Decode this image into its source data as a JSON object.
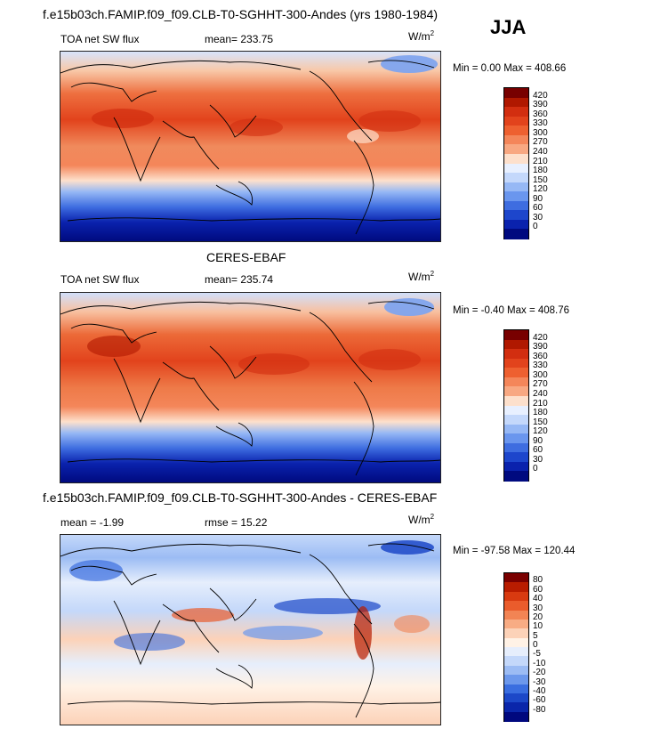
{
  "figure": {
    "season": "JJA"
  },
  "panels": [
    {
      "id": "model",
      "title": "f.e15b03ch.FAMIP.f09_f09.CLB-T0-SGHHT-300-Andes (yrs 1980-1984)",
      "variable": "TOA net SW flux",
      "stat1": "mean=  233.75",
      "stat2": "",
      "units": "W/m",
      "units_exp": "2",
      "minmax": "Min =   0.00  Max = 408.66",
      "colorbar": {
        "labels": [
          "420",
          "390",
          "360",
          "330",
          "300",
          "270",
          "240",
          "210",
          "180",
          "150",
          "120",
          "90",
          "60",
          "30",
          "0"
        ],
        "colors": [
          "#780000",
          "#b01800",
          "#d22e10",
          "#e2431c",
          "#ee6030",
          "#f4865a",
          "#f8a882",
          "#fde0cc",
          "#e8f0ff",
          "#c4d8fb",
          "#96b8f5",
          "#6a96ee",
          "#3e6de0",
          "#1d46cc",
          "#0a22ad",
          "#000a7f"
        ]
      }
    },
    {
      "id": "obs",
      "title": "CERES-EBAF",
      "variable": "TOA net SW flux",
      "stat1": "mean=  235.74",
      "stat2": "",
      "units": "W/m",
      "units_exp": "2",
      "minmax": "Min =  -0.40  Max = 408.76",
      "colorbar": {
        "labels": [
          "420",
          "390",
          "360",
          "330",
          "300",
          "270",
          "240",
          "210",
          "180",
          "150",
          "120",
          "90",
          "60",
          "30",
          "0"
        ],
        "colors": [
          "#780000",
          "#b01800",
          "#d22e10",
          "#e2431c",
          "#ee6030",
          "#f4865a",
          "#f8a882",
          "#fde0cc",
          "#e8f0ff",
          "#c4d8fb",
          "#96b8f5",
          "#6a96ee",
          "#3e6de0",
          "#1d46cc",
          "#0a22ad",
          "#000a7f"
        ]
      }
    },
    {
      "id": "diff",
      "title": "f.e15b03ch.FAMIP.f09_f09.CLB-T0-SGHHT-300-Andes - CERES-EBAF",
      "variable": "mean =   -1.99",
      "stat1": "rmse =   15.22",
      "stat2": "",
      "units": "W/m",
      "units_exp": "2",
      "minmax": "Min = -97.58  Max = 120.44",
      "colorbar": {
        "labels": [
          "80",
          "60",
          "40",
          "30",
          "20",
          "10",
          "5",
          "0",
          "-5",
          "-10",
          "-20",
          "-30",
          "-40",
          "-60",
          "-80"
        ],
        "colors": [
          "#7a0000",
          "#b81c00",
          "#d83a10",
          "#ea5c2c",
          "#f28454",
          "#f8ac84",
          "#fcd2b8",
          "#fff2e6",
          "#e6eefc",
          "#c4d8fa",
          "#9cbcf4",
          "#6c98ec",
          "#3a6ee0",
          "#1c48c8",
          "#0a26aa",
          "#00087e"
        ]
      }
    }
  ],
  "chart_data": [
    {
      "type": "heatmap",
      "title": "f.e15b03ch.FAMIP.f09_f09.CLB-T0-SGHHT-300-Andes (yrs 1980-1984)",
      "subtitle": "TOA net SW flux",
      "season": "JJA",
      "units": "W/m2",
      "mean": 233.75,
      "min": 0.0,
      "max": 408.66,
      "colorbar_levels": [
        0,
        30,
        60,
        90,
        120,
        150,
        180,
        210,
        240,
        270,
        300,
        330,
        360,
        390,
        420
      ],
      "xlim": [
        0,
        360
      ],
      "ylim": [
        -90,
        90
      ],
      "grid": false,
      "zonal_mean_rows": [
        {
          "lat": 90,
          "value": 205
        },
        {
          "lat": 75,
          "value": 220
        },
        {
          "lat": 60,
          "value": 275
        },
        {
          "lat": 45,
          "value": 305
        },
        {
          "lat": 30,
          "value": 340
        },
        {
          "lat": 15,
          "value": 330
        },
        {
          "lat": 0,
          "value": 300
        },
        {
          "lat": -15,
          "value": 290
        },
        {
          "lat": -30,
          "value": 220
        },
        {
          "lat": -45,
          "value": 120
        },
        {
          "lat": -60,
          "value": 50
        },
        {
          "lat": -75,
          "value": 10
        },
        {
          "lat": -90,
          "value": 0
        }
      ]
    },
    {
      "type": "heatmap",
      "title": "CERES-EBAF",
      "subtitle": "TOA net SW flux",
      "units": "W/m2",
      "mean": 235.74,
      "min": -0.4,
      "max": 408.76,
      "colorbar_levels": [
        0,
        30,
        60,
        90,
        120,
        150,
        180,
        210,
        240,
        270,
        300,
        330,
        360,
        390,
        420
      ],
      "xlim": [
        0,
        360
      ],
      "ylim": [
        -90,
        90
      ],
      "grid": false,
      "zonal_mean_rows": [
        {
          "lat": 90,
          "value": 200
        },
        {
          "lat": 75,
          "value": 215
        },
        {
          "lat": 60,
          "value": 270
        },
        {
          "lat": 45,
          "value": 310
        },
        {
          "lat": 30,
          "value": 345
        },
        {
          "lat": 15,
          "value": 335
        },
        {
          "lat": 0,
          "value": 305
        },
        {
          "lat": -15,
          "value": 300
        },
        {
          "lat": -30,
          "value": 225
        },
        {
          "lat": -45,
          "value": 115
        },
        {
          "lat": -60,
          "value": 45
        },
        {
          "lat": -75,
          "value": 5
        },
        {
          "lat": -90,
          "value": 0
        }
      ]
    },
    {
      "type": "heatmap",
      "title": "f.e15b03ch.FAMIP.f09_f09.CLB-T0-SGHHT-300-Andes - CERES-EBAF",
      "units": "W/m2",
      "mean": -1.99,
      "rmse": 15.22,
      "min": -97.58,
      "max": 120.44,
      "colorbar_levels": [
        -80,
        -60,
        -40,
        -30,
        -20,
        -10,
        -5,
        0,
        5,
        10,
        20,
        30,
        40,
        60,
        80
      ],
      "xlim": [
        0,
        360
      ],
      "ylim": [
        -90,
        90
      ],
      "grid": false,
      "zonal_mean_rows": [
        {
          "lat": 90,
          "value": 2
        },
        {
          "lat": 75,
          "value": -20
        },
        {
          "lat": 60,
          "value": -12
        },
        {
          "lat": 45,
          "value": -8
        },
        {
          "lat": 30,
          "value": -6
        },
        {
          "lat": 15,
          "value": 4
        },
        {
          "lat": 0,
          "value": 6
        },
        {
          "lat": -15,
          "value": -10
        },
        {
          "lat": -30,
          "value": -4
        },
        {
          "lat": -45,
          "value": 3
        },
        {
          "lat": -60,
          "value": 2
        },
        {
          "lat": -75,
          "value": 1
        },
        {
          "lat": -90,
          "value": 0
        }
      ]
    }
  ]
}
